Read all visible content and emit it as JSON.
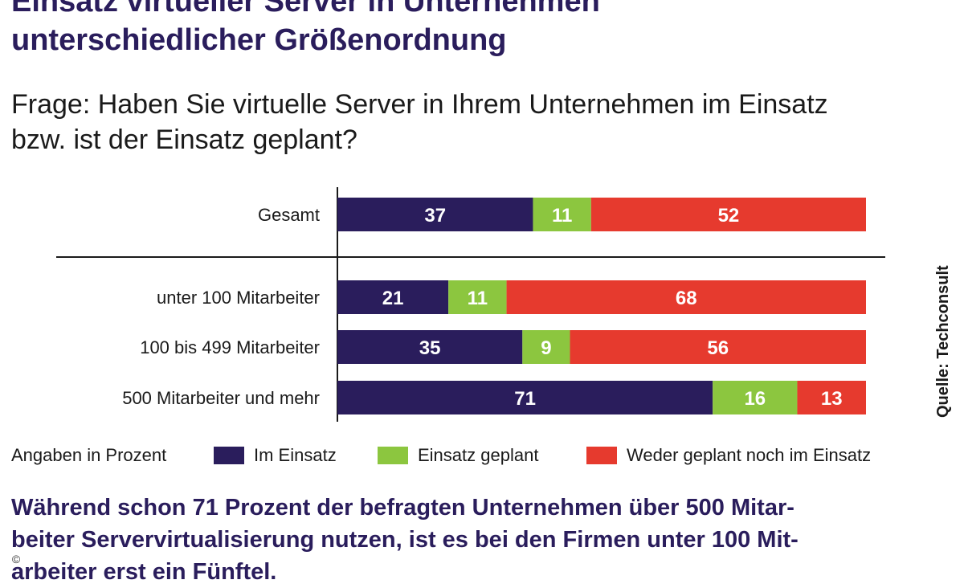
{
  "title_line1": "Einsatz virtueller Server in Unternehmen",
  "title_line2": "unterschiedlicher Größenordnung",
  "question_line1": "Frage: Haben Sie virtuelle Server in Ihrem Unternehmen im Einsatz",
  "question_line2": "bzw. ist der Einsatz geplant?",
  "source": "Quelle: Techconsult",
  "legend": {
    "note": "Angaben in Prozent",
    "im_einsatz": "Im Einsatz",
    "geplant": "Einsatz geplant",
    "weder": "Weder geplant noch im Einsatz"
  },
  "caption_line1": "Während schon 71 Prozent der befragten Unternehmen über 500 Mitar-",
  "caption_line2": "beiter Servervirtualisierung nutzen, ist es bei den Firmen unter 100 Mit-",
  "caption_line3": "arbeiter erst ein Fünftel.",
  "copyright": "©",
  "colors": {
    "im_einsatz": "#2a1d5c",
    "geplant": "#8cc63f",
    "weder": "#e63a2e",
    "title": "#2a1d5c"
  },
  "chart_data": {
    "type": "bar",
    "orientation": "horizontal",
    "stacked": true,
    "unit": "Prozent",
    "categories": [
      "Gesamt",
      "unter 100 Mitarbeiter",
      "100 bis 499 Mitarbeiter",
      "500 Mitarbeiter und mehr"
    ],
    "series": [
      {
        "name": "Im Einsatz",
        "color": "#2a1d5c",
        "values": [
          37,
          21,
          35,
          71
        ]
      },
      {
        "name": "Einsatz geplant",
        "color": "#8cc63f",
        "values": [
          11,
          11,
          9,
          16
        ]
      },
      {
        "name": "Weder geplant noch im Einsatz",
        "color": "#e63a2e",
        "values": [
          52,
          68,
          56,
          13
        ]
      }
    ],
    "xlim": [
      0,
      100
    ],
    "legend_position": "bottom"
  }
}
